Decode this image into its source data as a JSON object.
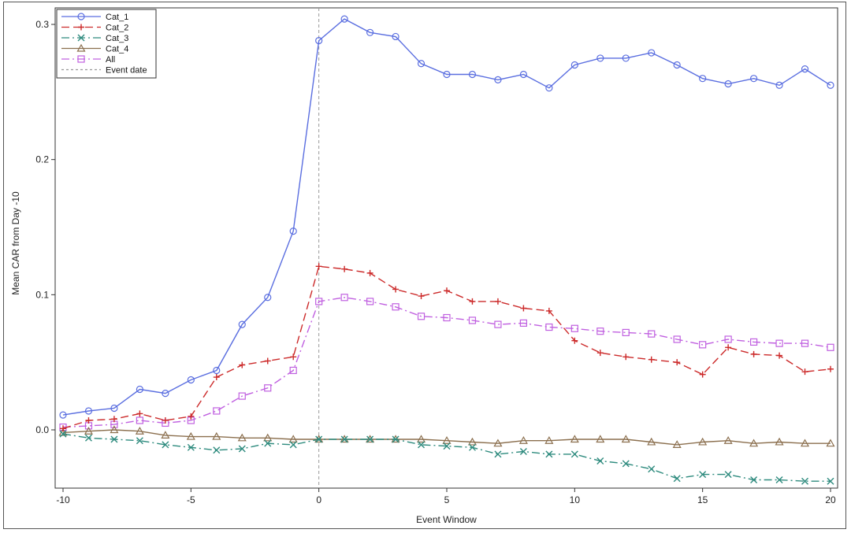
{
  "chart_data": {
    "type": "line",
    "title": "",
    "xlabel": "Event Window",
    "ylabel": "Mean CAR from Day -10",
    "xlim": [
      -10,
      20
    ],
    "ylim": [
      -0.04,
      0.31
    ],
    "x_ticks": [
      -10,
      -5,
      0,
      5,
      10,
      15,
      20
    ],
    "y_ticks": [
      0.0,
      0.1,
      0.2,
      0.3
    ],
    "x_tick_labels": [
      "-10",
      "-5",
      "0",
      "5",
      "10",
      "15",
      "20"
    ],
    "y_tick_labels": [
      "0.0",
      "0.1",
      "0.2",
      "0.3"
    ],
    "grid": false,
    "legend_position": "top-left",
    "x": [
      -10,
      -9,
      -8,
      -7,
      -6,
      -5,
      -4,
      -3,
      -2,
      -1,
      0,
      1,
      2,
      3,
      4,
      5,
      6,
      7,
      8,
      9,
      10,
      11,
      12,
      13,
      14,
      15,
      16,
      17,
      18,
      19,
      20
    ],
    "series": [
      {
        "name": "Cat_1",
        "color": "#5a6ee0",
        "line_style": "solid",
        "marker": "circle",
        "values": [
          0.011,
          0.014,
          0.016,
          0.03,
          0.027,
          0.037,
          0.044,
          0.078,
          0.098,
          0.147,
          0.288,
          0.304,
          0.294,
          0.291,
          0.271,
          0.263,
          0.263,
          0.259,
          0.263,
          0.253,
          0.27,
          0.275,
          0.275,
          0.279,
          0.27,
          0.26,
          0.256,
          0.26,
          0.255,
          0.267,
          0.255
        ]
      },
      {
        "name": "Cat_2",
        "color": "#cc2a2a",
        "line_style": "dashed",
        "marker": "plus",
        "values": [
          0.001,
          0.007,
          0.008,
          0.012,
          0.007,
          0.01,
          0.039,
          0.048,
          0.051,
          0.054,
          0.121,
          0.119,
          0.116,
          0.104,
          0.099,
          0.103,
          0.095,
          0.095,
          0.09,
          0.088,
          0.066,
          0.057,
          0.054,
          0.052,
          0.05,
          0.041,
          0.061,
          0.056,
          0.055,
          0.043,
          0.045
        ]
      },
      {
        "name": "Cat_3",
        "color": "#2e8b7e",
        "line_style": "dashdot",
        "marker": "x",
        "values": [
          -0.003,
          -0.006,
          -0.007,
          -0.008,
          -0.011,
          -0.013,
          -0.015,
          -0.014,
          -0.01,
          -0.011,
          -0.007,
          -0.007,
          -0.007,
          -0.007,
          -0.011,
          -0.012,
          -0.013,
          -0.018,
          -0.016,
          -0.018,
          -0.018,
          -0.023,
          -0.025,
          -0.029,
          -0.036,
          -0.033,
          -0.033,
          -0.037,
          -0.037,
          -0.038,
          -0.038
        ]
      },
      {
        "name": "Cat_4",
        "color": "#8b6f4e",
        "line_style": "solid",
        "marker": "triangle",
        "values": [
          -0.002,
          -0.001,
          0.0,
          -0.001,
          -0.004,
          -0.005,
          -0.005,
          -0.006,
          -0.006,
          -0.007,
          -0.007,
          -0.007,
          -0.007,
          -0.007,
          -0.007,
          -0.008,
          -0.009,
          -0.01,
          -0.008,
          -0.008,
          -0.007,
          -0.007,
          -0.007,
          -0.009,
          -0.011,
          -0.009,
          -0.008,
          -0.01,
          -0.009,
          -0.01,
          -0.01
        ]
      },
      {
        "name": "All",
        "color": "#c060e0",
        "line_style": "dashdot",
        "marker": "square",
        "values": [
          0.002,
          0.003,
          0.004,
          0.007,
          0.005,
          0.007,
          0.014,
          0.025,
          0.031,
          0.044,
          0.095,
          0.098,
          0.095,
          0.091,
          0.084,
          0.083,
          0.081,
          0.078,
          0.079,
          0.076,
          0.075,
          0.073,
          0.072,
          0.071,
          0.067,
          0.063,
          0.067,
          0.065,
          0.064,
          0.064,
          0.061
        ]
      }
    ],
    "reference_lines": [
      {
        "name": "Event date",
        "orientation": "vertical",
        "x": 0,
        "color": "#999999",
        "line_style": "dashed"
      }
    ]
  }
}
